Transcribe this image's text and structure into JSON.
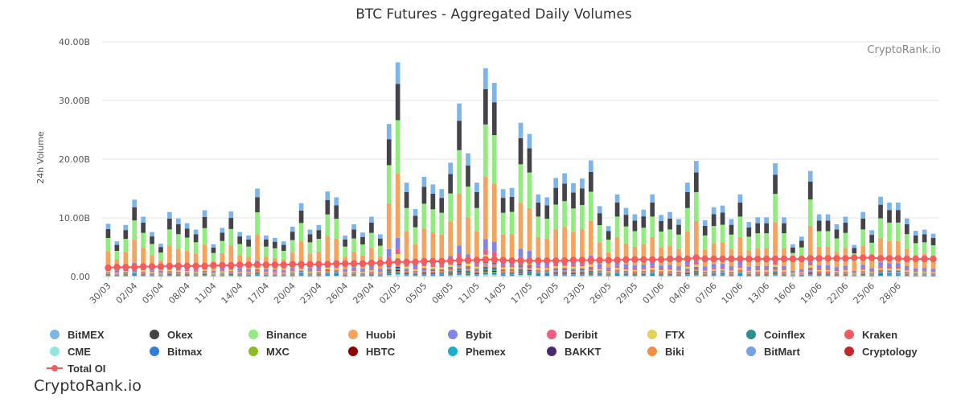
{
  "chart_data": {
    "type": "bar",
    "stacked": true,
    "title": "BTC Futures - Aggregated Daily Volumes",
    "credit": "CryptoRank.io",
    "footer_text": "CryptoRank.io",
    "ylabel": "24h Volume",
    "ylim": [
      0,
      40
    ],
    "y_ticks": [
      "0.00",
      "10.00B",
      "20.00B",
      "30.00B",
      "40.00B"
    ],
    "grid": true,
    "legend_position": "bottom",
    "x_tick_labels": [
      "30/03",
      "02/04",
      "05/04",
      "08/04",
      "11/04",
      "14/04",
      "17/04",
      "20/04",
      "23/04",
      "26/04",
      "29/04",
      "02/05",
      "05/05",
      "08/05",
      "11/05",
      "14/05",
      "17/05",
      "20/05",
      "23/05",
      "26/05",
      "29/05",
      "01/06",
      "04/06",
      "07/06",
      "10/06",
      "13/06",
      "16/06",
      "19/06",
      "22/06",
      "25/06",
      "28/06"
    ],
    "totals": [
      9.0,
      6.0,
      8.8,
      13.1,
      10.2,
      7.6,
      5.6,
      11.0,
      9.9,
      9.1,
      8.0,
      11.3,
      5.5,
      8.3,
      11.1,
      7.6,
      7.0,
      15.0,
      7.0,
      6.6,
      6.0,
      8.5,
      12.5,
      8.0,
      8.8,
      14.5,
      13.5,
      7.0,
      8.9,
      7.5,
      10.2,
      7.2,
      26.0,
      36.5,
      16.0,
      11.5,
      17.0,
      15.7,
      14.9,
      19.4,
      29.5,
      21.0,
      16.0,
      35.5,
      33.0,
      14.9,
      15.1,
      26.2,
      24.3,
      14.0,
      13.5,
      16.8,
      17.6,
      15.9,
      16.7,
      19.8,
      12.0,
      8.6,
      14.0,
      11.7,
      10.6,
      11.4,
      14.0,
      10.5,
      11.0,
      9.8,
      16.0,
      19.7,
      9.6,
      11.8,
      12.1,
      9.8,
      14.0,
      9.3,
      10.1,
      10.1,
      19.3,
      10.1,
      5.5,
      6.8,
      18.0,
      10.6,
      10.6,
      8.9,
      10.2,
      5.4,
      11.0,
      7.9,
      13.6,
      12.6,
      12.6,
      9.9,
      7.8,
      8.0,
      7.3
    ],
    "total_oi": [
      1.5,
      1.6,
      1.6,
      1.6,
      1.7,
      1.7,
      1.7,
      1.8,
      1.8,
      1.8,
      1.8,
      1.8,
      1.9,
      1.9,
      1.9,
      2.0,
      2.0,
      2.0,
      2.0,
      2.0,
      2.0,
      2.1,
      2.1,
      2.1,
      2.1,
      2.1,
      2.2,
      2.2,
      2.2,
      2.2,
      2.3,
      2.3,
      2.4,
      2.5,
      2.5,
      2.5,
      2.6,
      2.6,
      2.6,
      2.7,
      2.8,
      2.8,
      2.8,
      2.9,
      2.9,
      2.8,
      2.7,
      2.7,
      2.7,
      2.7,
      2.7,
      2.7,
      2.7,
      2.8,
      2.8,
      2.8,
      2.8,
      2.8,
      2.8,
      2.9,
      2.9,
      2.9,
      2.9,
      2.9,
      3.0,
      3.0,
      3.0,
      3.2,
      3.0,
      3.0,
      3.0,
      3.0,
      3.0,
      3.0,
      3.0,
      3.0,
      3.0,
      3.0,
      3.0,
      3.0,
      3.1,
      3.1,
      3.1,
      3.1,
      3.1,
      3.2,
      3.2,
      3.2,
      3.1,
      3.1,
      3.1,
      3.0,
      3.0,
      3.0,
      3.0
    ],
    "exchanges": [
      {
        "name": "BitMEX",
        "color": "#7cb5ec",
        "share": 0.1
      },
      {
        "name": "Okex",
        "color": "#434348",
        "share": 0.17
      },
      {
        "name": "Binance",
        "color": "#90ed7d",
        "share": 0.25
      },
      {
        "name": "Huobi",
        "color": "#f7a35c",
        "share": 0.3
      },
      {
        "name": "Bybit",
        "color": "#8085e9",
        "share": 0.05
      },
      {
        "name": "Deribit",
        "color": "#f15c80",
        "share": 0.025
      },
      {
        "name": "FTX",
        "color": "#e4d354",
        "share": 0.02
      },
      {
        "name": "Coinflex",
        "color": "#2b908f",
        "share": 0.005
      },
      {
        "name": "Kraken",
        "color": "#f45b5b",
        "share": 0.01
      },
      {
        "name": "CME",
        "color": "#91e8e1",
        "share": 0.01
      },
      {
        "name": "Bitmax",
        "color": "#2f7ed8",
        "share": 0.01
      },
      {
        "name": "MXC",
        "color": "#8bbc21",
        "share": 0.005
      },
      {
        "name": "HBTC",
        "color": "#910000",
        "share": 0.005
      },
      {
        "name": "Phemex",
        "color": "#1aadce",
        "share": 0.01
      },
      {
        "name": "BAKKT",
        "color": "#492970",
        "share": 0.005
      },
      {
        "name": "Biki",
        "color": "#f28f43",
        "share": 0.01
      },
      {
        "name": "BitMart",
        "color": "#77a1e5",
        "share": 0.01
      },
      {
        "name": "Cryptology",
        "color": "#c42525",
        "share": 0.005
      }
    ],
    "oi_series": {
      "name": "Total OI",
      "color": "#f45b5b"
    }
  }
}
